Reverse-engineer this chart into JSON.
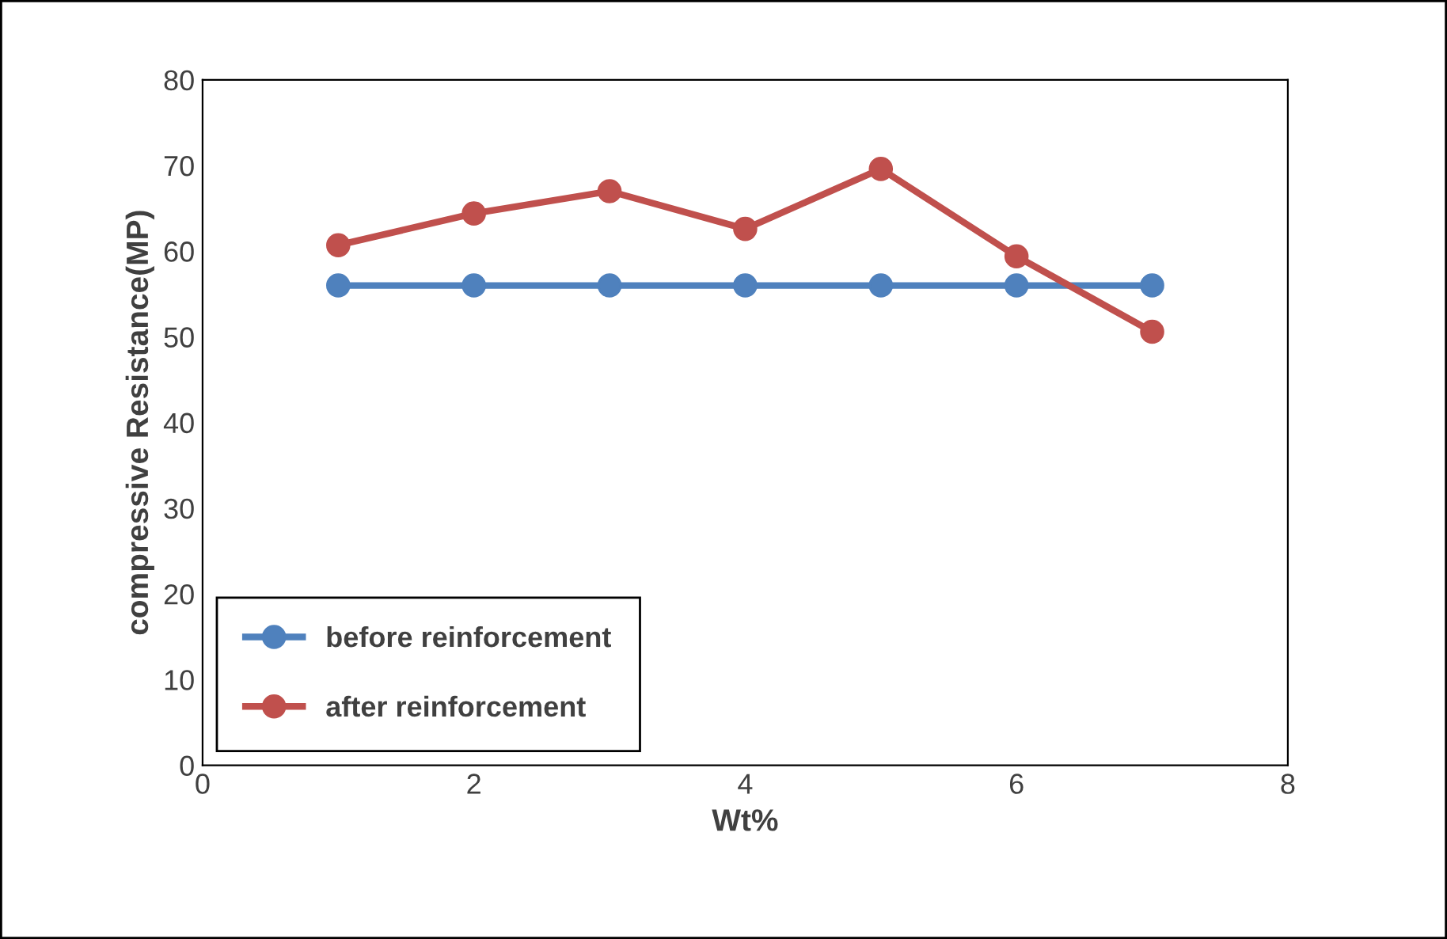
{
  "chart_data": {
    "type": "line",
    "xlabel": "Wt%",
    "ylabel": "compressive Resistance(MP)",
    "x": [
      1,
      2,
      3,
      4,
      5,
      6,
      7
    ],
    "series": [
      {
        "name": "before reinforcement",
        "color": "#4f81bd",
        "values": [
          56,
          56,
          56,
          56,
          56,
          56,
          56
        ]
      },
      {
        "name": "after reinforcement",
        "color": "#c0504d",
        "values": [
          60.7,
          64.4,
          67.0,
          62.6,
          69.6,
          59.4,
          50.6
        ]
      }
    ],
    "xlim": [
      0,
      8
    ],
    "xticks": [
      0,
      2,
      4,
      6,
      8
    ],
    "ylim": [
      0,
      80
    ],
    "yticks": [
      0,
      10,
      20,
      30,
      40,
      50,
      60,
      70,
      80
    ],
    "grid": false,
    "legend": "bottom left",
    "marker": "circle",
    "line_style": "solid"
  }
}
